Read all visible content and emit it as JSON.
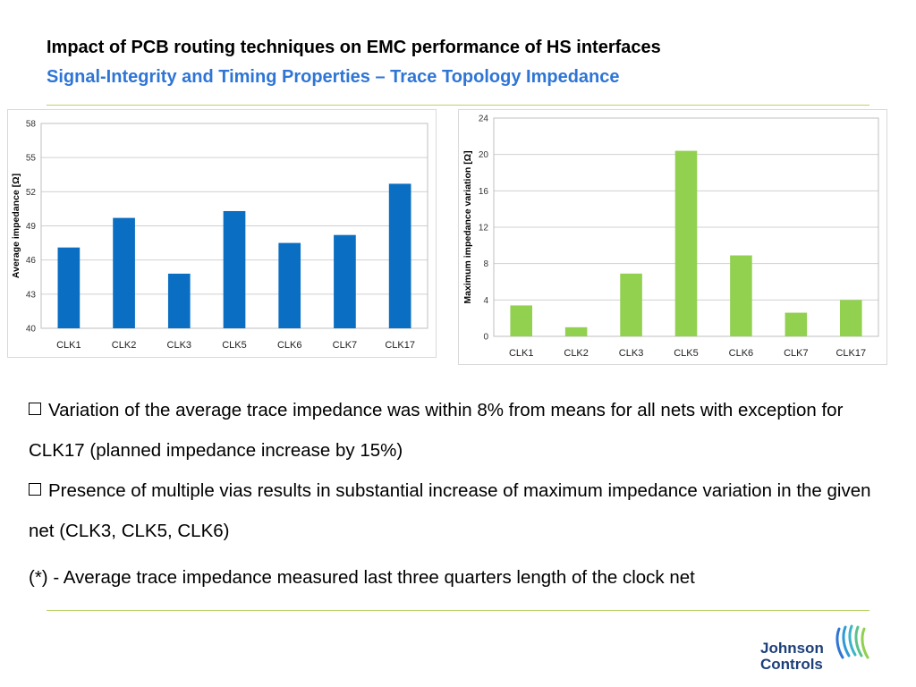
{
  "title": "Impact of PCB routing techniques on EMC performance of HS interfaces",
  "subtitle": "Signal-Integrity and Timing Properties – Trace Topology Impedance",
  "bullets": [
    "Variation of the average trace impedance was within 8% from means for all nets with exception for CLK17 (planned impedance increase by 15%)",
    "Presence of multiple vias results in substantial increase of maximum impedance variation in the given net (CLK3, CLK5, CLK6)"
  ],
  "note": "(*) - Average trace impedance measured last three quarters length of the clock net",
  "logo": {
    "line1": "Johnson",
    "line2": "Controls"
  },
  "colors": {
    "title": "#000000",
    "subtitle": "#2e75d6",
    "rule": "#b9d36b",
    "bar_left": "#0a6fc2",
    "bar_right": "#92d050",
    "logo": "#1d3f7a"
  },
  "chart_data": [
    {
      "type": "bar",
      "categories": [
        "CLK1",
        "CLK2",
        "CLK3",
        "CLK5",
        "CLK6",
        "CLK7",
        "CLK17"
      ],
      "values": [
        47.1,
        49.7,
        44.8,
        50.3,
        47.5,
        48.2,
        52.7
      ],
      "ylabel": "Average impedance  [Ω]",
      "ylim": [
        40,
        58
      ],
      "yticks": [
        40,
        43,
        46,
        49,
        52,
        55,
        58
      ],
      "grid": true,
      "color": "#0a6fc2"
    },
    {
      "type": "bar",
      "categories": [
        "CLK1",
        "CLK2",
        "CLK3",
        "CLK5",
        "CLK6",
        "CLK7",
        "CLK17"
      ],
      "values": [
        3.4,
        1.0,
        6.9,
        20.4,
        8.9,
        2.6,
        4.0
      ],
      "ylabel": "Maximum impedance  variation  [Ω]",
      "ylim": [
        0,
        24
      ],
      "yticks": [
        0,
        4,
        8,
        12,
        16,
        20,
        24
      ],
      "grid": true,
      "color": "#92d050"
    }
  ]
}
